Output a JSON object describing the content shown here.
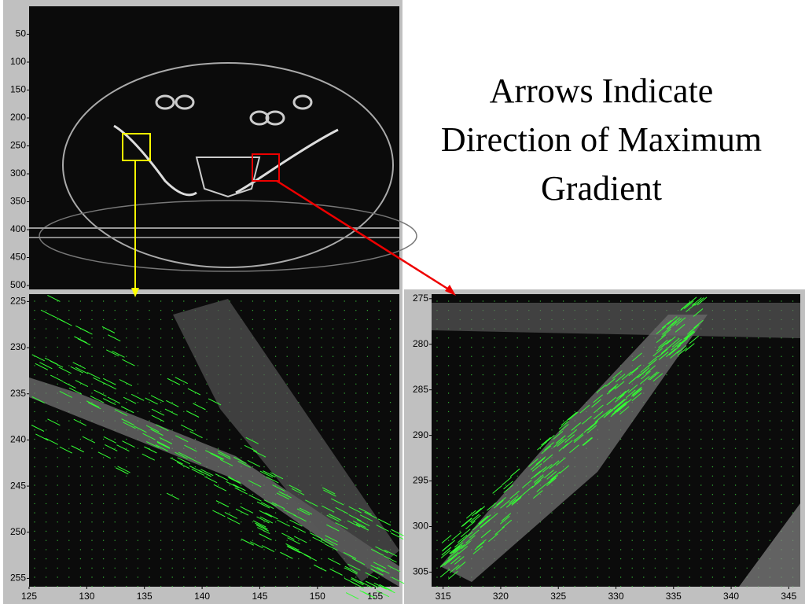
{
  "slide": {
    "title": "Arrows Indicate Direction of Maximum Gradient"
  },
  "chart_data": [
    {
      "type": "image",
      "ylim": [
        0,
        507
      ],
      "y_inverted": true,
      "yticks": [
        50,
        100,
        150,
        200,
        250,
        300,
        350,
        400,
        450,
        500
      ]
    },
    {
      "type": "image",
      "xlim": [
        125,
        157.1
      ],
      "ylim": [
        224.2,
        255.9
      ],
      "y_inverted": true,
      "xticks": [
        125,
        130,
        135,
        140,
        145,
        150,
        155
      ],
      "yticks": [
        225,
        230,
        235,
        240,
        245,
        250,
        255
      ]
    },
    {
      "type": "image",
      "xlim": [
        314,
        346
      ],
      "ylim": [
        274.5,
        306.6
      ],
      "y_inverted": true,
      "xticks": [
        315,
        320,
        325,
        330,
        335,
        340,
        345
      ],
      "yticks": [
        275,
        280,
        285,
        290,
        295,
        300,
        305
      ]
    }
  ]
}
